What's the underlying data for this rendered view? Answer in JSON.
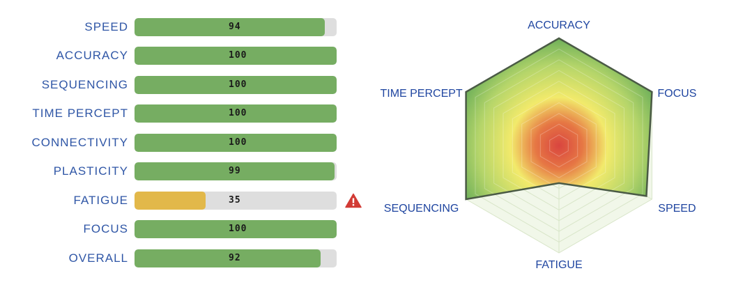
{
  "chart_data": [
    {
      "type": "bar",
      "orientation": "horizontal",
      "max": 100,
      "categories": [
        "SPEED",
        "ACCURACY",
        "SEQUENCING",
        "TIME PERCEPT",
        "CONNECTIVITY",
        "PLASTICITY",
        "FATIGUE",
        "FOCUS",
        "OVERALL"
      ],
      "values": [
        94,
        100,
        100,
        100,
        100,
        99,
        35,
        100,
        92
      ],
      "status": [
        "ok",
        "ok",
        "ok",
        "ok",
        "ok",
        "ok",
        "warn",
        "ok",
        "ok"
      ],
      "warning_icon": "warning-triangle-icon",
      "colors": {
        "ok": "#76ad62",
        "warn": "#e2b84a",
        "track": "#dedede",
        "label": "#2f56a6",
        "warning_icon": "#d23b35"
      }
    },
    {
      "type": "radar",
      "max": 100,
      "grid": true,
      "grid_rings": 10,
      "axes": [
        "ACCURACY",
        "FOCUS",
        "SPEED",
        "FATIGUE",
        "SEQUENCING",
        "TIME PERCEPT"
      ],
      "values": [
        100,
        100,
        94,
        35,
        100,
        100
      ],
      "colors": {
        "outline": "#4a5a45",
        "grid": "#d8e5c8",
        "center": "#d9453f",
        "middle": "#f2ea6b",
        "outer": "#6fb05a",
        "label": "#1f45a0"
      }
    }
  ]
}
